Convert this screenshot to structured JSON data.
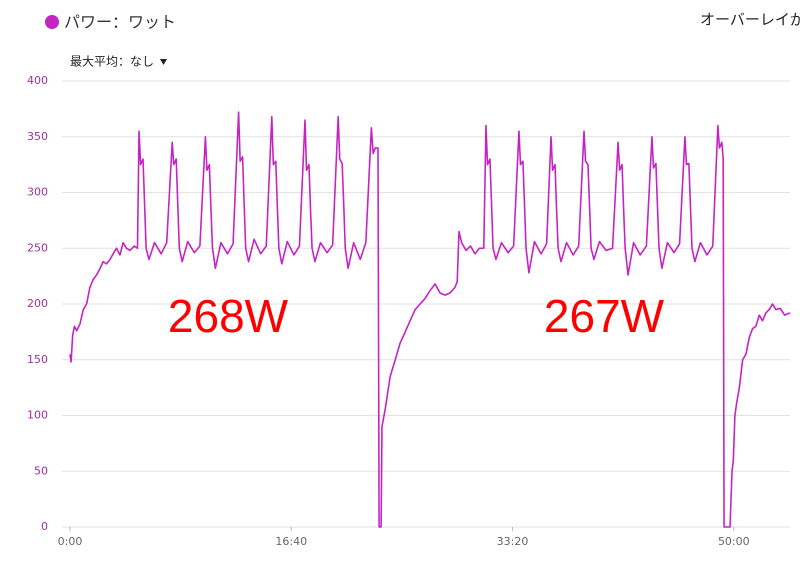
{
  "chart_data": {
    "type": "line",
    "x": [
      0,
      5,
      12,
      20,
      30,
      45,
      60,
      75,
      90,
      105,
      120,
      136,
      150,
      165,
      181,
      195,
      210,
      226,
      240,
      255,
      271,
      290,
      305,
      312,
      319,
      330,
      337,
      344,
      357,
      382,
      412,
      437,
      462,
      469,
      480,
      487,
      494,
      507,
      532,
      562,
      587,
      612,
      619,
      630,
      637,
      644,
      657,
      682,
      712,
      737,
      762,
      769,
      780,
      787,
      794,
      807,
      832,
      862,
      887,
      912,
      919,
      930,
      937,
      944,
      957,
      982,
      1012,
      1037,
      1062,
      1069,
      1080,
      1087,
      1094,
      1107,
      1132,
      1162,
      1187,
      1212,
      1219,
      1230,
      1237,
      1244,
      1257,
      1282,
      1312,
      1337,
      1362,
      1370,
      1380,
      1392,
      1397,
      1406,
      1410,
      1424,
      1447,
      1470,
      1492,
      1515,
      1537,
      1560,
      1582,
      1605,
      1627,
      1650,
      1672,
      1695,
      1718,
      1740,
      1750,
      1758,
      1770,
      1790,
      1810,
      1830,
      1850,
      1870,
      1880,
      1887,
      1898,
      1905,
      1912,
      1925,
      1950,
      1980,
      2005,
      2029,
      2036,
      2047,
      2054,
      2061,
      2074,
      2099,
      2129,
      2154,
      2174,
      2181,
      2192,
      2199,
      2206,
      2219,
      2244,
      2274,
      2299,
      2323,
      2330,
      2341,
      2348,
      2355,
      2368,
      2393,
      2423,
      2452,
      2477,
      2484,
      2495,
      2502,
      2509,
      2522,
      2547,
      2577,
      2605,
      2630,
      2637,
      2648,
      2655,
      2662,
      2675,
      2700,
      2730,
      2755,
      2779,
      2786,
      2797,
      2804,
      2811,
      2824,
      2849,
      2879,
      2905,
      2928,
      2935,
      2946,
      2952,
      2956,
      2983,
      2992,
      2998,
      3005,
      3012,
      3025,
      3040,
      3055,
      3070,
      3085,
      3100,
      3115,
      3130,
      3145,
      3160,
      3175,
      3190,
      3210,
      3230,
      3254
    ],
    "series": [
      {
        "name": "パワー：ワット",
        "color": "#c524c5",
        "values": [
          155,
          148,
          172,
          180,
          176,
          182,
          195,
          200,
          215,
          222,
          226,
          232,
          238,
          236,
          240,
          245,
          250,
          244,
          255,
          250,
          248,
          252,
          250,
          355,
          325,
          330,
          290,
          250,
          240,
          255,
          245,
          255,
          345,
          325,
          330,
          290,
          250,
          238,
          256,
          246,
          252,
          350,
          320,
          325,
          285,
          250,
          232,
          255,
          245,
          254,
          372,
          328,
          332,
          290,
          250,
          238,
          258,
          245,
          252,
          368,
          325,
          328,
          288,
          250,
          236,
          256,
          244,
          252,
          365,
          320,
          325,
          285,
          250,
          238,
          255,
          246,
          253,
          368,
          330,
          326,
          290,
          250,
          232,
          255,
          240,
          255,
          358,
          335,
          340,
          340,
          0,
          0,
          90,
          105,
          135,
          150,
          165,
          175,
          185,
          195,
          200,
          205,
          212,
          218,
          210,
          208,
          210,
          215,
          220,
          265,
          255,
          248,
          252,
          245,
          250,
          250,
          360,
          325,
          330,
          290,
          250,
          240,
          255,
          246,
          252,
          355,
          325,
          328,
          290,
          250,
          228,
          256,
          245,
          254,
          350,
          320,
          325,
          285,
          250,
          238,
          255,
          244,
          252,
          355,
          328,
          325,
          288,
          250,
          240,
          256,
          248,
          250,
          345,
          320,
          325,
          285,
          250,
          226,
          255,
          244,
          252,
          350,
          322,
          326,
          288,
          250,
          232,
          255,
          246,
          254,
          350,
          325,
          326,
          288,
          250,
          238,
          255,
          244,
          252,
          360,
          340,
          345,
          330,
          0,
          0,
          50,
          60,
          100,
          110,
          125,
          150,
          155,
          170,
          178,
          180,
          190,
          185,
          192,
          195,
          200,
          195,
          196,
          190,
          192
        ]
      }
    ],
    "xlim": [
      0,
      3254
    ],
    "ylim": [
      0,
      400
    ],
    "xticks": [
      {
        "value": 0,
        "label": "0:00"
      },
      {
        "value": 1000,
        "label": "16:40"
      },
      {
        "value": 2000,
        "label": "33:20"
      },
      {
        "value": 3000,
        "label": "50:00"
      }
    ],
    "yticks": [
      0,
      50,
      100,
      150,
      200,
      250,
      300,
      350,
      400
    ],
    "grid": true,
    "annotations": [
      {
        "text": "268W"
      },
      {
        "text": "267W"
      }
    ]
  },
  "controls": {
    "overlay": "オーバーレイが",
    "max_average": "最大平均：なし"
  }
}
